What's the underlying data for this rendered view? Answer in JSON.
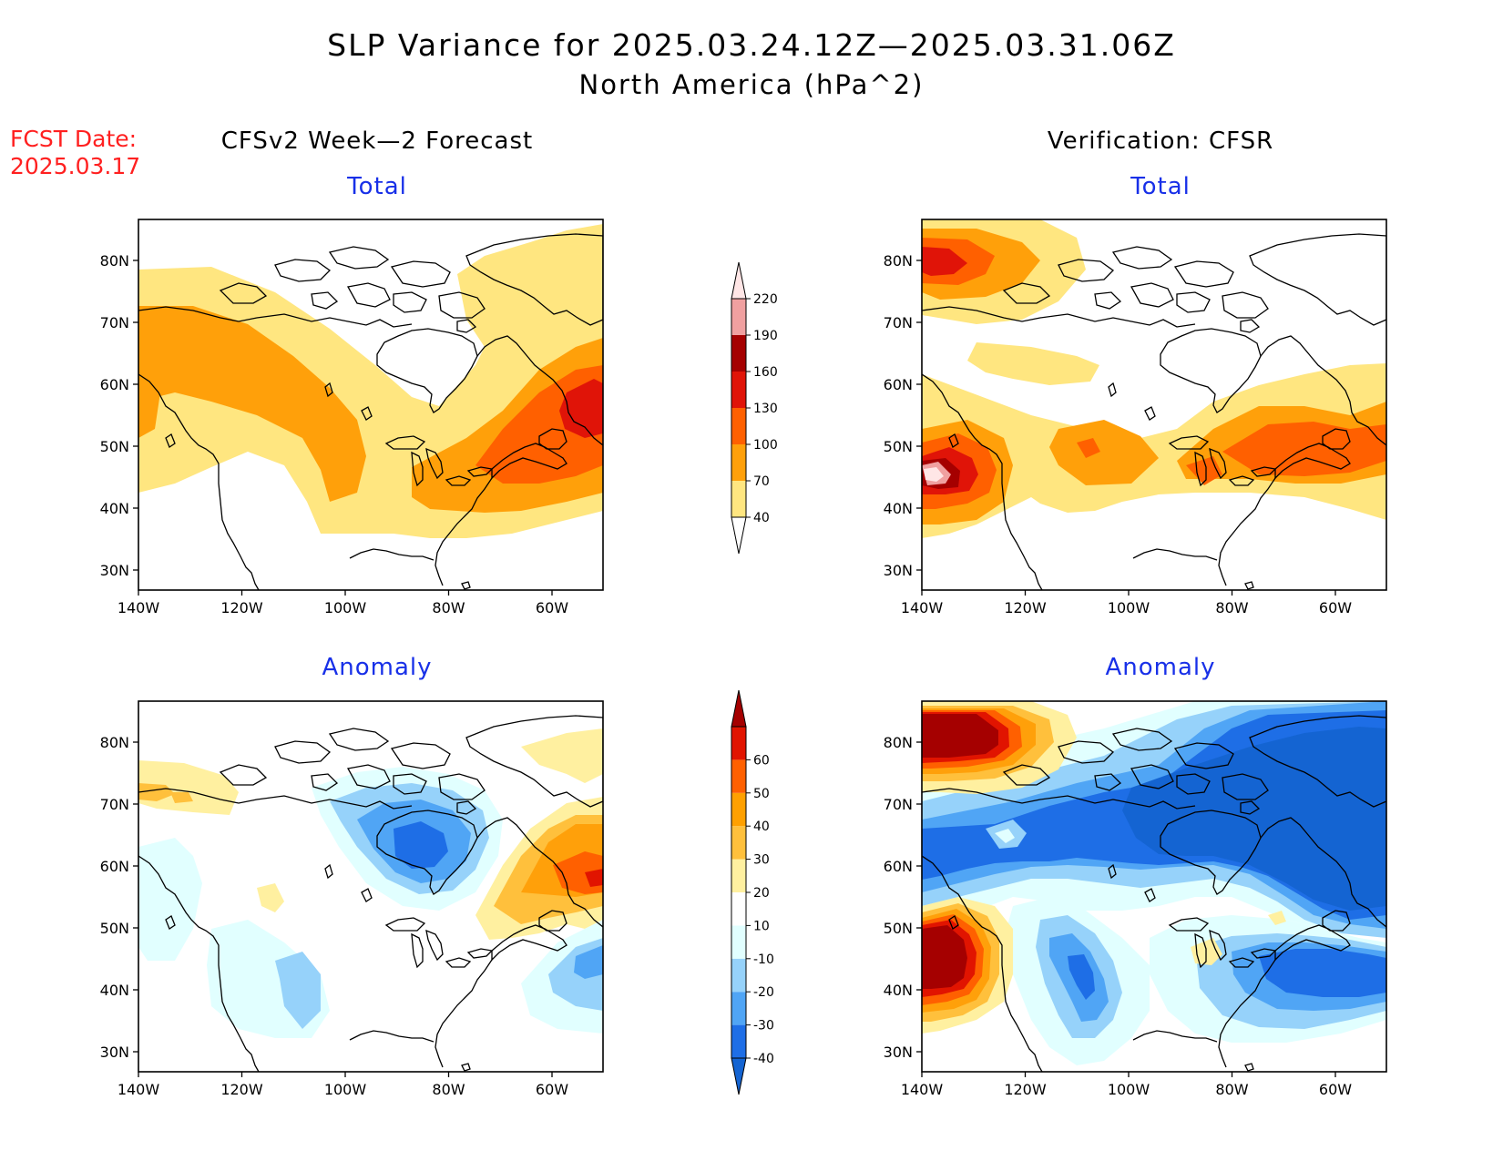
{
  "header": {
    "title": "SLP Variance for 2025.03.24.12Z—2025.03.31.06Z",
    "subtitle": "North America (hPa^2)"
  },
  "fcst": {
    "line1": "FCST Date:",
    "line2": "2025.03.17"
  },
  "columns": {
    "left": "CFSv2 Week—2 Forecast",
    "right": "Verification: CFSR"
  },
  "panels": [
    {
      "id": "fc-total",
      "title": "Total"
    },
    {
      "id": "ver-total",
      "title": "Total"
    },
    {
      "id": "fc-anom",
      "title": "Anomaly"
    },
    {
      "id": "ver-anom",
      "title": "Anomaly"
    }
  ],
  "axes": {
    "lat_ticks": [
      "30N",
      "40N",
      "50N",
      "60N",
      "70N",
      "80N"
    ],
    "lon_ticks": [
      "140W",
      "120W",
      "100W",
      "80W",
      "60W"
    ]
  },
  "colorbars": {
    "total": {
      "levels": [
        "40",
        "70",
        "100",
        "130",
        "160",
        "190",
        "220"
      ],
      "colors": [
        "#ffe680",
        "#ffa00a",
        "#ff6000",
        "#e01408",
        "#a50000",
        "#f0a0a0",
        "#ffe6e6"
      ]
    },
    "anomaly": {
      "levels": [
        "-40",
        "-30",
        "-20",
        "-10",
        "10",
        "20",
        "30",
        "40",
        "50",
        "60"
      ],
      "colors": [
        "#1464d2",
        "#1e6ee6",
        "#50a5f5",
        "#96d2fa",
        "#e1ffff",
        "#ffffff",
        "#fff0a0",
        "#ffc03c",
        "#ffa000",
        "#ff6000",
        "#e11400",
        "#a50000"
      ]
    }
  }
}
